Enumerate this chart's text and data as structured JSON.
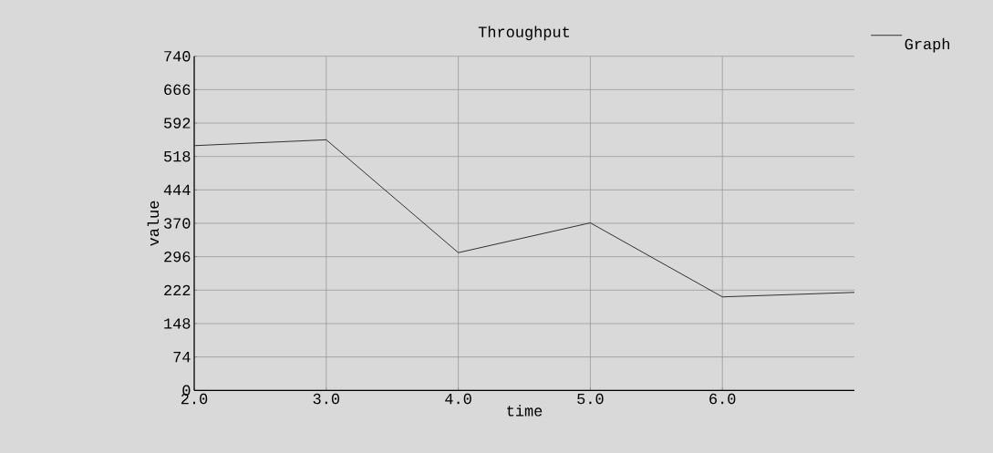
{
  "chart_data": {
    "type": "line",
    "title": "Throughput",
    "xlabel": "time",
    "ylabel": "value",
    "x": [
      2,
      3,
      4,
      5,
      6,
      7
    ],
    "series": [
      {
        "name": "Graph",
        "color": "#303030",
        "values": [
          542,
          555,
          305,
          371,
          207,
          217
        ]
      }
    ],
    "xlim": [
      2,
      7
    ],
    "ylim": [
      0,
      740
    ],
    "xticks": [
      {
        "value": 2,
        "label": "2.0"
      },
      {
        "value": 3,
        "label": "3.0"
      },
      {
        "value": 4,
        "label": "4.0"
      },
      {
        "value": 5,
        "label": "5.0"
      },
      {
        "value": 6,
        "label": "6.0"
      }
    ],
    "yticks": [
      0,
      74,
      148,
      222,
      296,
      370,
      444,
      518,
      592,
      666,
      740
    ],
    "grid": true,
    "legend": "top right",
    "marker": "none",
    "line_style": "solid"
  }
}
